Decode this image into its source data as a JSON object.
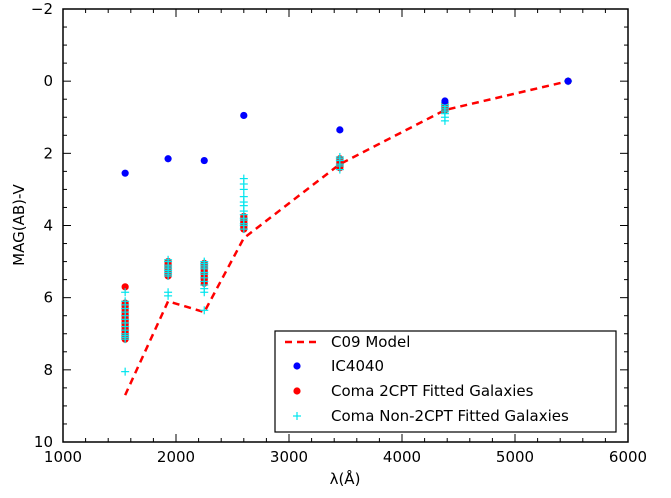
{
  "chart_data": {
    "type": "scatter",
    "xlabel": "λ(Å)",
    "ylabel": "MAG(AB)-V",
    "xlim": [
      1000,
      6000
    ],
    "ylim": [
      10,
      -2
    ],
    "y_axis_inverted": true,
    "xticks": [
      1000,
      2000,
      3000,
      4000,
      5000,
      6000
    ],
    "yticks": [
      -2,
      0,
      2,
      4,
      6,
      8,
      10
    ],
    "legend_position": "bottom-right",
    "grid": false,
    "colors": {
      "model": "#ff0000",
      "ic4040": "#0000ff",
      "coma_2cpt": "#ff0000",
      "coma_non2cpt": "#00e5ee"
    },
    "series": [
      {
        "name": "C09 Model",
        "style": "dashed-line",
        "x": [
          1550,
          1930,
          2250,
          2600,
          3450,
          4380,
          5470
        ],
        "y": [
          8.7,
          6.1,
          6.4,
          4.35,
          2.3,
          0.8,
          0.0
        ]
      },
      {
        "name": "IC4040",
        "style": "circle",
        "x": [
          1550,
          1930,
          2250,
          2600,
          3450,
          4380,
          5470
        ],
        "y": [
          2.55,
          2.15,
          2.2,
          0.95,
          1.35,
          0.55,
          0.0
        ]
      },
      {
        "name": "Coma 2CPT Fitted Galaxies",
        "style": "circle",
        "x": [
          1550,
          1550,
          1550,
          1550,
          1550,
          1550,
          1550,
          1550,
          1550,
          1550,
          1550,
          1550,
          1550,
          1550,
          1550,
          1550,
          1550,
          1550,
          1550,
          1930,
          1930,
          1930,
          1930,
          1930,
          1930,
          1930,
          1930,
          1930,
          2250,
          2250,
          2250,
          2250,
          2250,
          2250,
          2250,
          2250,
          2250,
          2250,
          2250,
          2600,
          2600,
          2600,
          2600,
          2600,
          2600,
          2600,
          2600,
          3450,
          3450,
          3450,
          3450,
          3450,
          3450,
          4380,
          4380,
          4380,
          4380,
          5470
        ],
        "y": [
          5.7,
          6.15,
          6.25,
          6.35,
          6.45,
          6.55,
          6.6,
          6.7,
          6.75,
          6.8,
          6.85,
          6.9,
          6.95,
          7.0,
          7.05,
          6.5,
          6.65,
          7.1,
          7.15,
          5.0,
          5.05,
          5.1,
          5.15,
          5.2,
          5.25,
          5.3,
          5.35,
          5.4,
          5.05,
          5.1,
          5.15,
          5.2,
          5.25,
          5.3,
          5.35,
          5.4,
          5.45,
          5.5,
          5.6,
          3.75,
          3.8,
          3.85,
          3.9,
          3.95,
          4.0,
          4.05,
          4.1,
          2.15,
          2.2,
          2.25,
          2.3,
          2.35,
          2.4,
          0.65,
          0.7,
          0.75,
          0.8,
          0.0
        ]
      },
      {
        "name": "Coma Non-2CPT Fitted Galaxies",
        "style": "plus",
        "x": [
          1550,
          1550,
          1550,
          1550,
          1550,
          1550,
          1550,
          1550,
          1550,
          1550,
          1550,
          1550,
          1550,
          1550,
          1550,
          1930,
          1930,
          1930,
          1930,
          1930,
          1930,
          1930,
          1930,
          1930,
          1930,
          1930,
          2250,
          2250,
          2250,
          2250,
          2250,
          2250,
          2250,
          2250,
          2250,
          2250,
          2250,
          2250,
          2250,
          2600,
          2600,
          2600,
          2600,
          2600,
          2600,
          2600,
          2600,
          2600,
          2600,
          2600,
          2600,
          2600,
          3450,
          3450,
          3450,
          3450,
          3450,
          3450,
          4380,
          4380,
          4380,
          4380,
          4380,
          4380,
          4380,
          4380,
          4380,
          5470
        ],
        "y": [
          5.85,
          6.1,
          6.2,
          6.3,
          6.4,
          6.5,
          6.6,
          6.7,
          6.8,
          6.9,
          7.0,
          7.05,
          7.1,
          7.15,
          8.05,
          4.95,
          5.0,
          5.1,
          5.15,
          5.2,
          5.25,
          5.3,
          5.35,
          5.4,
          5.85,
          5.95,
          5.0,
          5.05,
          5.1,
          5.15,
          5.2,
          5.3,
          5.35,
          5.45,
          5.55,
          5.65,
          5.75,
          5.85,
          6.35,
          2.7,
          2.85,
          3.0,
          3.2,
          3.35,
          3.45,
          3.6,
          3.7,
          3.8,
          3.85,
          3.95,
          4.0,
          4.1,
          2.1,
          2.15,
          2.2,
          2.3,
          2.35,
          2.45,
          0.6,
          0.65,
          0.7,
          0.75,
          0.8,
          0.85,
          0.9,
          1.0,
          1.1,
          0.0
        ]
      }
    ]
  }
}
